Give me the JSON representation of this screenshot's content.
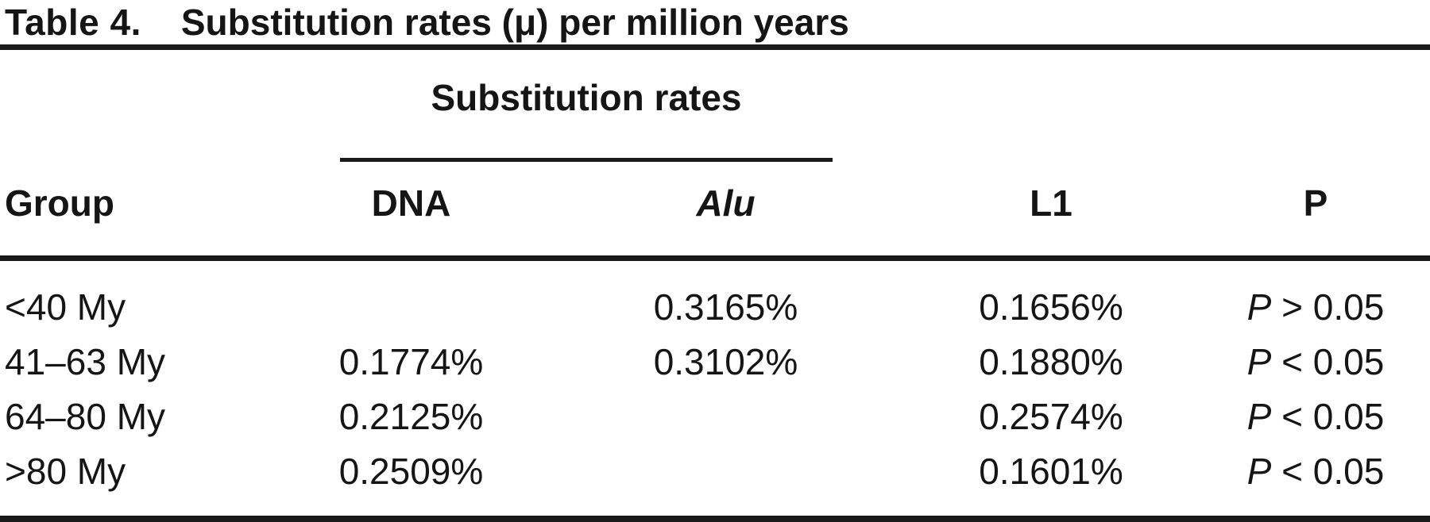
{
  "table": {
    "title_label": "Table 4.",
    "title_text": "Substitution rates (μ) per million years",
    "spanner_label": "Substitution rates",
    "columns": {
      "group": "Group",
      "dna": "DNA",
      "alu": "Alu",
      "l1": "L1",
      "p": "P"
    },
    "rows": [
      {
        "group": "<40 My",
        "dna": "",
        "alu": "0.3165%",
        "l1": "0.1656%",
        "p_var": "P",
        "p_rel": " > 0.05"
      },
      {
        "group": "41–63 My",
        "dna": "0.1774%",
        "alu": "0.3102%",
        "l1": "0.1880%",
        "p_var": "P",
        "p_rel": " < 0.05"
      },
      {
        "group": "64–80 My",
        "dna": "0.2125%",
        "alu": "",
        "l1": "0.2574%",
        "p_var": "P",
        "p_rel": " < 0.05"
      },
      {
        "group": ">80 My",
        "dna": "0.2509%",
        "alu": "",
        "l1": "0.1601%",
        "p_var": "P",
        "p_rel": " < 0.05"
      }
    ]
  }
}
